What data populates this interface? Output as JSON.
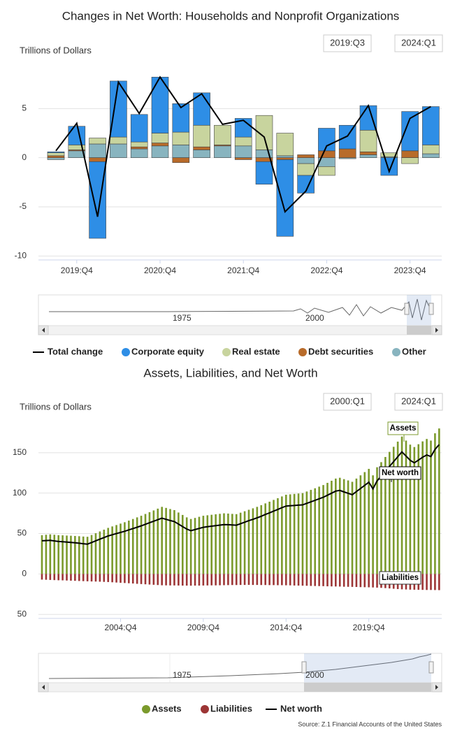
{
  "chart_data": [
    {
      "type": "bar",
      "stacked": true,
      "title": "Changes in Net Worth: Households and Nonprofit Organizations",
      "y_label": "Trillions of Dollars",
      "range": [
        "2019:Q3",
        "2024:Q1"
      ],
      "navigator": [
        "1975",
        "2000"
      ],
      "categories": [
        null,
        "2019:Q4",
        null,
        null,
        null,
        "2020:Q4",
        null,
        null,
        null,
        "2021:Q4",
        null,
        null,
        null,
        "2022:Q4",
        null,
        null,
        null,
        "2023:Q4",
        null
      ],
      "series": [
        {
          "name": "Total change",
          "type": "line",
          "color": "#000000",
          "values": [
            0.7,
            3.5,
            -6.0,
            7.7,
            4.5,
            8.2,
            5.1,
            6.5,
            3.4,
            3.8,
            2.1,
            -5.5,
            -3.4,
            1.2,
            2.2,
            5.3,
            -1.4,
            4.0,
            5.2
          ]
        },
        {
          "name": "Corporate equity",
          "color": "#2e8ee6",
          "values": [
            0.1,
            1.9,
            -7.8,
            5.7,
            2.8,
            5.7,
            2.9,
            3.3,
            0,
            1.9,
            -2.3,
            -7.8,
            -1.8,
            2.3,
            2.4,
            2.5,
            -1.8,
            4.0,
            3.9
          ]
        },
        {
          "name": "Real estate",
          "color": "#c8d49e",
          "values": [
            0.3,
            0.5,
            0.6,
            0.7,
            0.5,
            1.0,
            1.3,
            2.2,
            2.0,
            0.9,
            3.5,
            2.3,
            -1.2,
            -0.9,
            0,
            2.2,
            0.4,
            -0.6,
            0.9
          ]
        },
        {
          "name": "Debt securities",
          "color": "#b86b2a",
          "values": [
            0.2,
            0.1,
            -0.4,
            0,
            0.2,
            0.3,
            -0.5,
            0.3,
            0.1,
            -0.2,
            -0.4,
            -0.2,
            0.3,
            0.7,
            0.9,
            0.3,
            0,
            0.7,
            0
          ]
        },
        {
          "name": "Other",
          "color": "#88b4bf",
          "values": [
            -0.2,
            0.7,
            1.4,
            1.4,
            0.9,
            1.2,
            1.3,
            0.8,
            1.2,
            1.2,
            0.8,
            0.2,
            -0.6,
            -0.9,
            -0.1,
            0.3,
            0.1,
            0,
            0.4
          ]
        }
      ],
      "ylim": [
        -10.4,
        10
      ],
      "yticks": [
        -10,
        -5,
        0,
        5
      ],
      "grid": true
    },
    {
      "type": "bar",
      "stacked": false,
      "title": "Assets, Liabilities, and Net Worth",
      "y_label": "Trillions of Dollars",
      "range": [
        "2000:Q1",
        "2024:Q1"
      ],
      "navigator": [
        "1975",
        "2000"
      ],
      "annotations": [
        "Assets",
        "Net worth",
        "Liabilities"
      ],
      "categories": [
        null,
        null,
        null,
        null,
        null,
        null,
        null,
        null,
        null,
        null,
        null,
        null,
        null,
        null,
        null,
        null,
        null,
        null,
        null,
        "2004:Q4",
        null,
        null,
        null,
        null,
        null,
        null,
        null,
        null,
        null,
        null,
        null,
        null,
        null,
        null,
        null,
        null,
        null,
        null,
        null,
        "2009:Q4",
        null,
        null,
        null,
        null,
        null,
        null,
        null,
        null,
        null,
        null,
        null,
        null,
        null,
        null,
        null,
        null,
        null,
        null,
        null,
        "2014:Q4",
        null,
        null,
        null,
        null,
        null,
        null,
        null,
        null,
        null,
        null,
        null,
        null,
        null,
        null,
        null,
        null,
        null,
        null,
        null,
        "2019:Q4",
        null,
        null,
        null,
        null,
        null,
        null,
        null,
        null,
        null,
        null,
        null,
        null,
        null,
        null,
        null,
        null,
        null
      ],
      "series": [
        {
          "name": "Assets",
          "color": "#7b9a2c",
          "values": [
            48,
            48.5,
            49,
            48.5,
            48,
            47.8,
            47.5,
            47.3,
            47,
            46.7,
            46.3,
            46,
            48.2,
            50.4,
            52.6,
            54.8,
            57,
            58.8,
            60.5,
            62.3,
            64,
            66,
            68,
            70,
            72,
            74.2,
            76.4,
            78.6,
            80.8,
            83,
            81.7,
            80.3,
            79,
            76,
            73,
            70,
            68,
            69.3,
            70.7,
            72,
            72.6,
            73.2,
            73.8,
            74.4,
            75,
            74.7,
            74.3,
            74,
            75.8,
            77.6,
            79.4,
            81.2,
            83,
            85.1,
            87.3,
            89.4,
            91.6,
            93.7,
            95.9,
            98,
            98.5,
            99,
            99.5,
            100,
            102,
            104,
            106,
            108,
            110,
            112.7,
            115.3,
            118,
            119,
            117.3,
            115.7,
            114,
            118,
            122,
            126,
            130,
            122,
            132,
            138.3,
            144.7,
            151,
            157.3,
            163.7,
            170,
            165,
            160,
            157,
            160.5,
            164,
            167,
            165,
            174,
            180
          ]
        },
        {
          "name": "Liabilities",
          "color": "#9c3535",
          "values": [
            -7,
            -7.2,
            -7.4,
            -7.6,
            -7.8,
            -7.9,
            -8.1,
            -8.3,
            -8.5,
            -8.7,
            -8.9,
            -9.1,
            -9.3,
            -9.4,
            -9.6,
            -9.8,
            -10,
            -10.3,
            -10.6,
            -10.9,
            -11.2,
            -11.5,
            -11.8,
            -12.2,
            -12.5,
            -12.8,
            -13.1,
            -13.4,
            -13.7,
            -14,
            -14.1,
            -14.2,
            -14.2,
            -14.3,
            -14.4,
            -14.4,
            -14.5,
            -14.4,
            -14.4,
            -14.3,
            -14.2,
            -14.1,
            -14.1,
            -14,
            -13.9,
            -13.8,
            -13.7,
            -13.7,
            -13.6,
            -13.6,
            -13.5,
            -13.6,
            -13.6,
            -13.7,
            -13.7,
            -13.8,
            -13.8,
            -13.9,
            -13.9,
            -14,
            -14.1,
            -14.3,
            -14.4,
            -14.5,
            -14.6,
            -14.8,
            -14.9,
            -15,
            -15.1,
            -15.3,
            -15.4,
            -15.5,
            -15.6,
            -15.8,
            -15.9,
            -16,
            -16.1,
            -16.3,
            -16.4,
            -16.5,
            -16.7,
            -16.9,
            -17.2,
            -17.5,
            -17.9,
            -18.3,
            -18.7,
            -19,
            -19.2,
            -19.4,
            -19.5,
            -19.6,
            -19.7,
            -19.8,
            -19.8,
            -19.9,
            -20
          ]
        },
        {
          "name": "Net worth",
          "type": "line",
          "color": "#000000",
          "values": [
            41,
            41.3,
            41.6,
            40.9,
            40.2,
            39.9,
            39.4,
            39,
            38.5,
            38,
            37.4,
            36.9,
            38.9,
            41,
            43,
            45,
            47,
            48.5,
            49.9,
            51.4,
            52.8,
            54.5,
            56.2,
            57.8,
            59.5,
            61.4,
            63.3,
            65.2,
            67.1,
            69,
            67.6,
            66.1,
            64.8,
            61.7,
            58.6,
            55.6,
            53.5,
            54.9,
            56.3,
            57.7,
            58.4,
            59.1,
            59.7,
            60.4,
            61.1,
            60.9,
            60.6,
            60.3,
            62.2,
            64,
            65.9,
            67.6,
            69.4,
            71.4,
            73.6,
            75.6,
            77.8,
            79.8,
            82,
            84,
            84.4,
            84.7,
            85.1,
            85.5,
            87.4,
            89.2,
            91.1,
            93,
            94.9,
            97.4,
            99.9,
            102.5,
            103.4,
            101.5,
            99.8,
            98,
            101.9,
            105.7,
            109.6,
            113.5,
            105.3,
            115.1,
            121.1,
            127.2,
            133.1,
            139,
            145,
            151,
            145.8,
            140.6,
            137.5,
            140.9,
            144.3,
            147.2,
            145.2,
            154.1,
            160
          ]
        }
      ],
      "ylim": [
        -55,
        200
      ],
      "yticks": [
        {
          "value": -50,
          "label": "50"
        },
        0,
        50,
        100,
        150
      ],
      "grid": true
    }
  ],
  "source": "Source: Z.1 Financial Accounts of the United States"
}
